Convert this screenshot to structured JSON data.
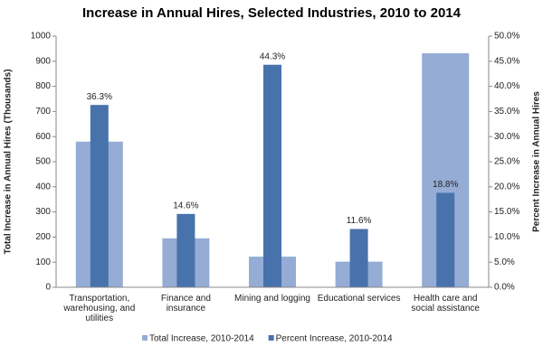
{
  "chart_data": {
    "type": "bar",
    "title": "Increase in Annual Hires, Selected Industries, 2010 to 2014",
    "y_label": "Total Increase in Annual Hires (Thousands)",
    "y2_label": "Percent Increase in Annual Hires",
    "categories": [
      "Transportation, warehousing, and utilities",
      "Finance and insurance",
      "Mining and logging",
      "Educational services",
      "Health care and social assistance"
    ],
    "series": [
      {
        "name": "Total Increase, 2010-2014",
        "color": "#95acd5",
        "values": [
          580,
          195,
          122,
          102,
          932
        ]
      },
      {
        "name": "Percent Increase, 2010-2014",
        "color": "#4872ac",
        "axis": "y2",
        "values": [
          36.3,
          14.6,
          44.3,
          11.6,
          18.8
        ],
        "value_labels": [
          "36.3%",
          "14.6%",
          "44.3%",
          "11.6%",
          "18.8%"
        ]
      }
    ],
    "ylim": [
      0,
      1000
    ],
    "yticks": [
      0,
      100,
      200,
      300,
      400,
      500,
      600,
      700,
      800,
      900,
      1000
    ],
    "y2lim": [
      0,
      50
    ],
    "y2ticks": [
      {
        "value": 0,
        "label": "0.0%"
      },
      {
        "value": 5,
        "label": "5.0%"
      },
      {
        "value": 10,
        "label": "10.0%"
      },
      {
        "value": 15,
        "label": "15.0%"
      },
      {
        "value": 20,
        "label": "20.0%"
      },
      {
        "value": 25,
        "label": "25.0%"
      },
      {
        "value": 30,
        "label": "30.0%"
      },
      {
        "value": 35,
        "label": "35.0%"
      },
      {
        "value": 40,
        "label": "40.0%"
      },
      {
        "value": 45,
        "label": "45.0%"
      },
      {
        "value": 50,
        "label": "50.0%"
      }
    ],
    "grid": false
  }
}
